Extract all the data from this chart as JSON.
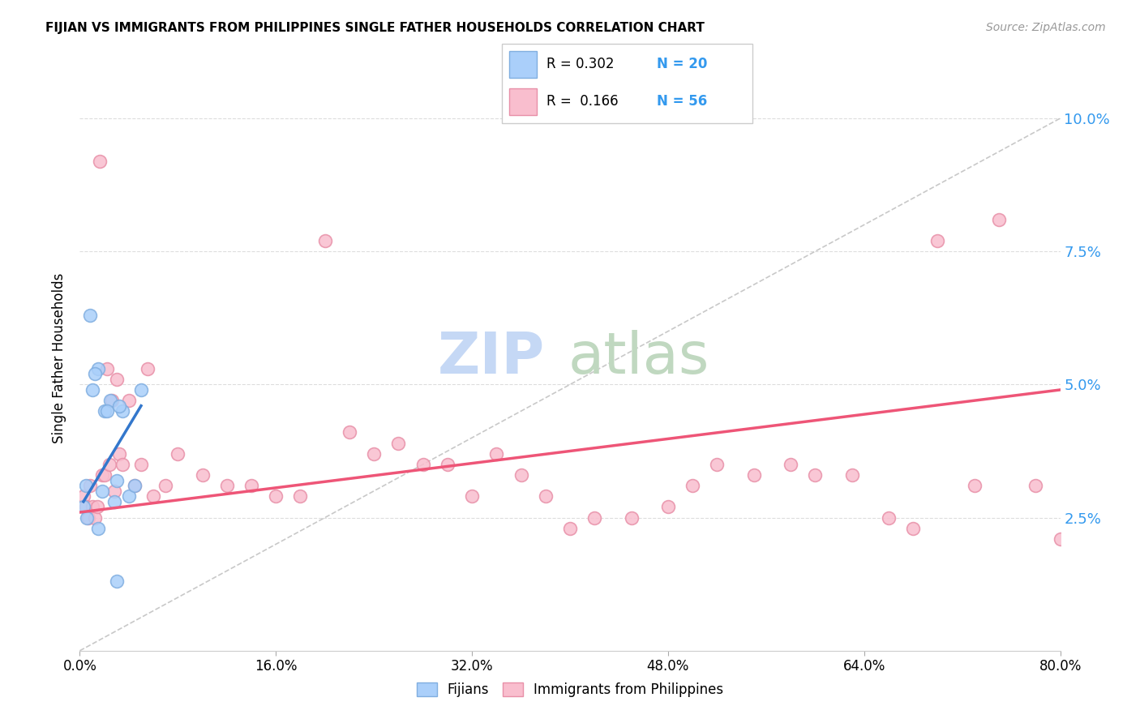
{
  "title": "FIJIAN VS IMMIGRANTS FROM PHILIPPINES SINGLE FATHER HOUSEHOLDS CORRELATION CHART",
  "source": "Source: ZipAtlas.com",
  "ylabel": "Single Father Households",
  "xlim": [
    0.0,
    80.0
  ],
  "ylim": [
    0.0,
    11.0
  ],
  "yticks": [
    2.5,
    5.0,
    7.5,
    10.0
  ],
  "xticks": [
    0.0,
    16.0,
    32.0,
    48.0,
    64.0,
    80.0
  ],
  "fijian_color": "#aacffa",
  "fijian_edge": "#80aee0",
  "philippines_color": "#f9bece",
  "philippines_edge": "#e890a8",
  "trendline_fijian_color": "#3377cc",
  "trendline_philippines_color": "#ee5577",
  "diagonal_color": "#bbbbbb",
  "watermark_zip_color": "#c5d8f5",
  "watermark_atlas_color": "#c0d8c0",
  "fijian_x": [
    0.5,
    1.0,
    1.5,
    2.0,
    2.5,
    3.0,
    3.5,
    4.0,
    4.5,
    5.0,
    0.8,
    1.2,
    1.8,
    2.2,
    3.2,
    0.3,
    0.6,
    1.5,
    2.8,
    3.0
  ],
  "fijian_y": [
    3.1,
    4.9,
    5.3,
    4.5,
    4.7,
    3.2,
    4.5,
    2.9,
    3.1,
    4.9,
    6.3,
    5.2,
    3.0,
    4.5,
    4.6,
    2.7,
    2.5,
    2.3,
    2.8,
    1.3
  ],
  "philippines_x": [
    0.3,
    0.5,
    0.7,
    0.8,
    1.0,
    1.2,
    1.4,
    1.6,
    1.8,
    2.0,
    2.2,
    2.4,
    2.6,
    2.8,
    3.0,
    3.2,
    3.5,
    4.0,
    4.5,
    5.0,
    5.5,
    6.0,
    7.0,
    8.0,
    10.0,
    12.0,
    14.0,
    16.0,
    18.0,
    20.0,
    22.0,
    24.0,
    26.0,
    28.0,
    30.0,
    32.0,
    34.0,
    36.0,
    38.0,
    40.0,
    42.0,
    45.0,
    48.0,
    50.0,
    52.0,
    55.0,
    58.0,
    60.0,
    63.0,
    66.0,
    68.0,
    70.0,
    73.0,
    75.0,
    78.0,
    80.0
  ],
  "philippines_y": [
    2.9,
    2.7,
    2.5,
    3.1,
    2.7,
    2.5,
    2.7,
    9.2,
    3.3,
    3.3,
    5.3,
    3.5,
    4.7,
    3.0,
    5.1,
    3.7,
    3.5,
    4.7,
    3.1,
    3.5,
    5.3,
    2.9,
    3.1,
    3.7,
    3.3,
    3.1,
    3.1,
    2.9,
    2.9,
    7.7,
    4.1,
    3.7,
    3.9,
    3.5,
    3.5,
    2.9,
    3.7,
    3.3,
    2.9,
    2.3,
    2.5,
    2.5,
    2.7,
    3.1,
    3.5,
    3.3,
    3.5,
    3.3,
    3.3,
    2.5,
    2.3,
    7.7,
    3.1,
    8.1,
    3.1,
    2.1
  ],
  "fijian_trend_x": [
    0.3,
    5.0
  ],
  "fijian_trend_y": [
    2.8,
    4.6
  ],
  "philippines_trend_x": [
    0.0,
    80.0
  ],
  "philippines_trend_y": [
    2.6,
    4.9
  ]
}
